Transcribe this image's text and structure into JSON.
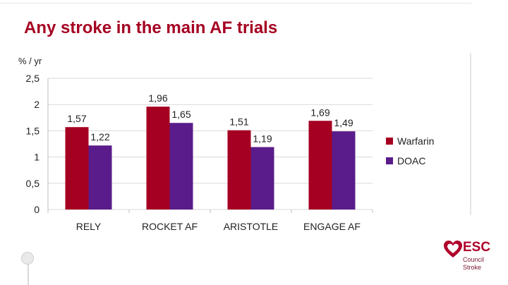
{
  "slide": {
    "title": "Any stroke in the main AF trials"
  },
  "logo": {
    "name": "ESC",
    "line1": "Council",
    "line2": "Stroke"
  },
  "colors": {
    "title": "#a50021",
    "warfarin": "#a50021",
    "doac": "#5a1c8a",
    "grid": "#d9d9d9",
    "axis": "#bfbfbf"
  },
  "chart_data": {
    "type": "bar",
    "title": "",
    "ylabel": "% / yr",
    "xlabel": "",
    "ylim": [
      0,
      2.5
    ],
    "yticks": [
      "0",
      "0,5",
      "1",
      "1,5",
      "2",
      "2,5"
    ],
    "categories": [
      "RELY",
      "ROCKET AF",
      "ARISTOTLE",
      "ENGAGE AF"
    ],
    "series": [
      {
        "name": "Warfarin",
        "values": [
          1.57,
          1.96,
          1.51,
          1.69
        ],
        "labels": [
          "1,57",
          "1,96",
          "1,51",
          "1,69"
        ]
      },
      {
        "name": "DOAC",
        "values": [
          1.22,
          1.65,
          1.19,
          1.49
        ],
        "labels": [
          "1,22",
          "1,65",
          "1,19",
          "1,49"
        ]
      }
    ],
    "grid": true,
    "legend": "right"
  }
}
